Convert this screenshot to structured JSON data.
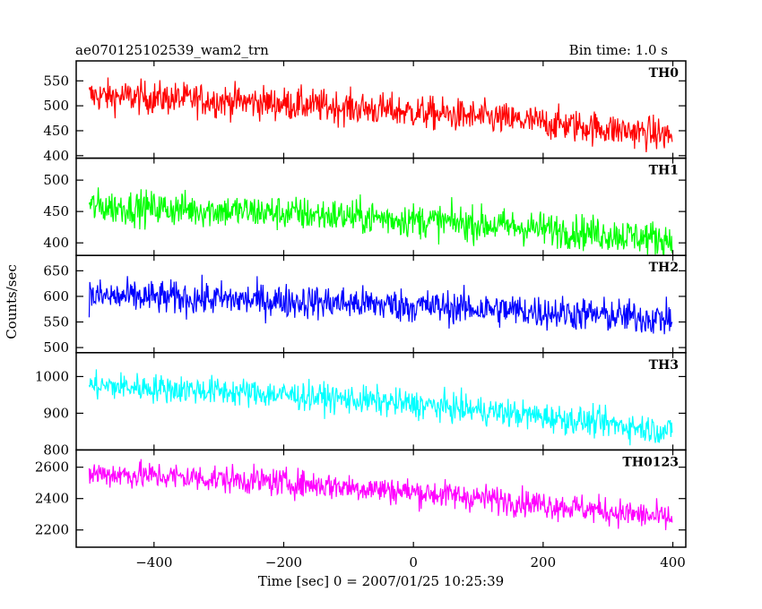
{
  "title_left": "ae070125102539_wam2_trn",
  "title_right": "Bin time: 1.0 s",
  "chart_data": {
    "type": "line",
    "xlabel": "Time [sec] 0 = 2007/01/25 10:25:39",
    "ylabel": "Counts/sec",
    "xlim": [
      -520,
      420
    ],
    "xticks": [
      -400,
      -200,
      0,
      200,
      400
    ],
    "x_range": [
      -500,
      399
    ],
    "bin_time_s": 1.0,
    "panels": [
      {
        "name": "TH0",
        "color": "#ff0000",
        "ylim": [
          395,
          590
        ],
        "yticks": [
          400,
          450,
          500,
          550
        ],
        "values_start": 520,
        "values_end": 440,
        "noise_amplitude": 30
      },
      {
        "name": "TH1",
        "color": "#00ff00",
        "ylim": [
          380,
          535
        ],
        "yticks": [
          400,
          450,
          500
        ],
        "values_start": 458,
        "values_end": 405,
        "noise_amplitude": 25
      },
      {
        "name": "TH2",
        "color": "#0000ff",
        "ylim": [
          490,
          680
        ],
        "yticks": [
          500,
          550,
          600,
          650
        ],
        "values_start": 600,
        "values_end": 555,
        "noise_amplitude": 30
      },
      {
        "name": "TH3",
        "color": "#00ffff",
        "ylim": [
          800,
          1065
        ],
        "yticks": [
          800,
          900,
          1000
        ],
        "values_start": 975,
        "values_end": 850,
        "noise_amplitude": 35
      },
      {
        "name": "TH0123",
        "color": "#ff00ff",
        "ylim": [
          2090,
          2710
        ],
        "yticks": [
          2200,
          2400,
          2600
        ],
        "values_start": 2560,
        "values_end": 2270,
        "noise_amplitude": 80
      }
    ]
  }
}
